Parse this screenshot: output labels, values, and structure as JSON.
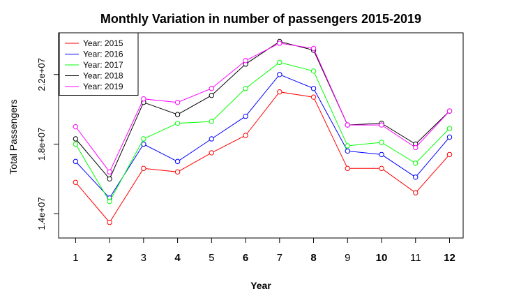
{
  "chart_data": {
    "type": "line",
    "title": "Monthly Variation in number of passengers 2015-2019",
    "xlabel": "Year",
    "ylabel": "Total Passengers",
    "categories": [
      1,
      2,
      3,
      4,
      5,
      6,
      7,
      8,
      9,
      10,
      11,
      12
    ],
    "x_tick_labels": [
      "1",
      "2",
      "3",
      "4",
      "5",
      "6",
      "7",
      "8",
      "9",
      "10",
      "11",
      "12"
    ],
    "y_ticks": [
      14000000,
      18000000,
      22000000
    ],
    "y_tick_labels": [
      "1.4e+07",
      "1.8e+07",
      "2.2e+07"
    ],
    "xlim": [
      0.5,
      12.4
    ],
    "ylim": [
      12600000,
      24400000
    ],
    "grid": false,
    "legend_position": "top-left",
    "series": [
      {
        "name": "Year: 2015",
        "color": "#ff0000",
        "values": [
          15800000,
          13500000,
          16600000,
          16400000,
          17500000,
          18500000,
          21000000,
          20700000,
          16600000,
          16600000,
          15200000,
          17400000
        ]
      },
      {
        "name": "Year: 2016",
        "color": "#0000ff",
        "values": [
          17000000,
          14900000,
          18000000,
          17000000,
          18300000,
          19600000,
          22000000,
          21200000,
          17600000,
          17400000,
          16100000,
          18400000
        ]
      },
      {
        "name": "Year: 2017",
        "color": "#00ff00",
        "values": [
          18000000,
          14700000,
          18300000,
          19200000,
          19300000,
          21200000,
          22700000,
          22200000,
          17900000,
          18100000,
          16900000,
          18900000
        ]
      },
      {
        "name": "Year: 2018",
        "color": "#000000",
        "values": [
          18300000,
          16000000,
          20400000,
          19700000,
          20800000,
          22600000,
          23900000,
          23400000,
          19100000,
          19200000,
          18000000,
          19900000
        ]
      },
      {
        "name": "Year: 2019",
        "color": "#ff00ff",
        "values": [
          19000000,
          16400000,
          20600000,
          20400000,
          21200000,
          22800000,
          23800000,
          23500000,
          19100000,
          19100000,
          17800000,
          19900000
        ]
      }
    ]
  }
}
